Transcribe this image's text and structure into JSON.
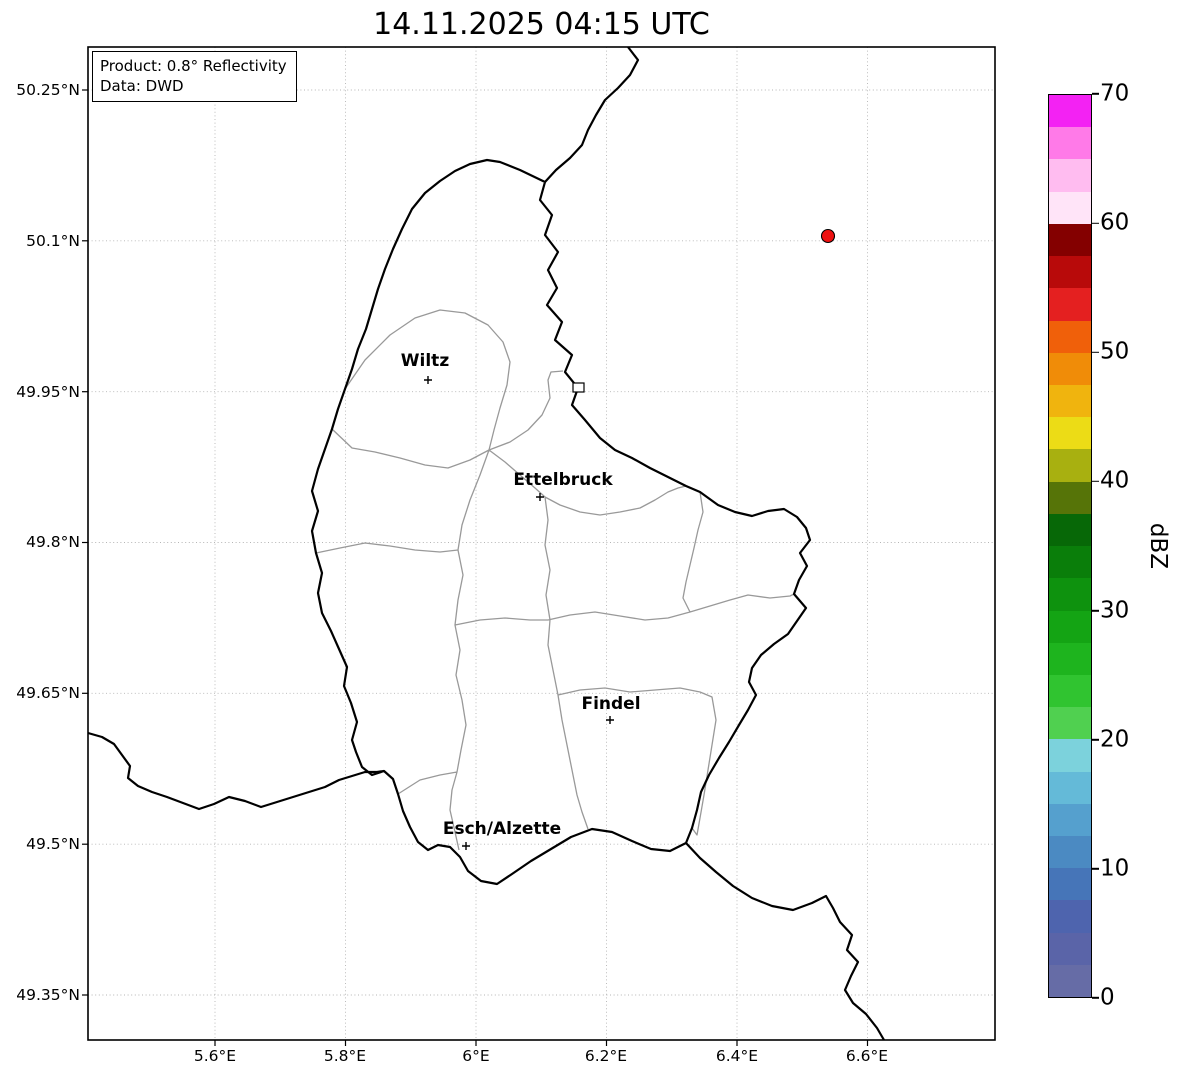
{
  "title": "14.11.2025 04:15 UTC",
  "legend": {
    "product": "Product: 0.8° Reflectivity",
    "data_source": "Data: DWD"
  },
  "axes": {
    "x_ticks": [
      "5.6°E",
      "5.8°E",
      "6°E",
      "6.2°E",
      "6.4°E",
      "6.6°E"
    ],
    "y_ticks": [
      "50.25°N",
      "50.1°N",
      "49.95°N",
      "49.8°N",
      "49.65°N",
      "49.5°N",
      "49.35°N"
    ]
  },
  "cities": [
    {
      "name": "Wiltz"
    },
    {
      "name": "Ettelbruck"
    },
    {
      "name": "Findel"
    },
    {
      "name": "Esch/Alzette"
    }
  ],
  "radar_marker": {
    "color": "#ee1111",
    "edge_color": "#000000"
  },
  "map": {
    "country_border_color": "#000000",
    "district_border_color": "#999999",
    "grid_color": "#b5b5b5"
  },
  "colorbar": {
    "label": "dBZ",
    "vmin": 0,
    "vmax": 70,
    "ticks": [
      0,
      10,
      20,
      30,
      40,
      50,
      60,
      70
    ],
    "colors": [
      "#666ca6",
      "#5a64a8",
      "#4e64ae",
      "#4675b8",
      "#4b8ac2",
      "#55a0ce",
      "#64bad8",
      "#7cd2dc",
      "#50d050",
      "#30c430",
      "#1eb41e",
      "#14a414",
      "#0e920e",
      "#0a7e0a",
      "#076807",
      "#567408",
      "#a8b010",
      "#ecdc16",
      "#f0b40e",
      "#f08c08",
      "#f0600a",
      "#e42020",
      "#b80a0a",
      "#840000",
      "#ffe4f8",
      "#ffbcf0",
      "#ff7ae8",
      "#f322f3"
    ]
  }
}
